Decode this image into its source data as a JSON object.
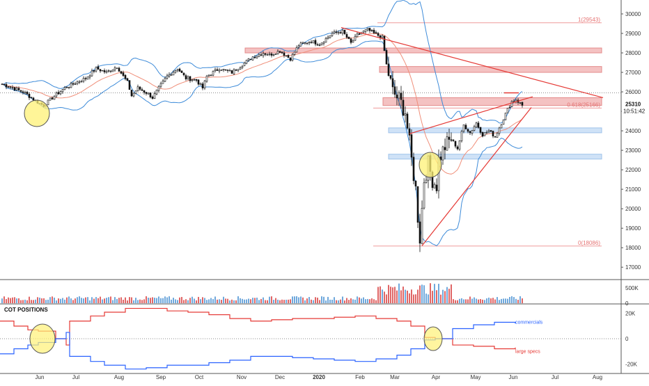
{
  "chart_data": {
    "type": "candlestick",
    "ohlc_reference": {
      "start_price": 26400,
      "end_price": 25310,
      "swing_high": 29543,
      "swing_low": 18086
    },
    "price_axis": {
      "ticks": [
        17000,
        18000,
        19000,
        20000,
        21000,
        22000,
        23000,
        24000,
        25000,
        26000,
        27000,
        28000,
        29000,
        30000
      ],
      "ylim": [
        16400,
        30500
      ],
      "current_price": "25310",
      "countdown": "10:51:42",
      "current_price_value": 25310
    },
    "time_axis": {
      "labels": [
        "Jun",
        "Jul",
        "Aug",
        "Sep",
        "Oct",
        "Nov",
        "Dec",
        "2020",
        "Feb",
        "Mar",
        "Apr",
        "May",
        "Jun",
        "Jul",
        "Aug"
      ]
    },
    "fibonacci": {
      "levels": [
        {
          "label": "1(29543)",
          "value": 29543
        },
        {
          "label": "0.618(25166)",
          "value": 25166
        },
        {
          "label": "0(18086)",
          "value": 18086
        }
      ]
    },
    "zones": [
      {
        "kind": "resistance",
        "low": 28000,
        "high": 28250
      },
      {
        "kind": "resistance",
        "low": 27000,
        "high": 27300
      },
      {
        "kind": "resistance",
        "low": 25300,
        "high": 25700
      },
      {
        "kind": "support",
        "low": 23900,
        "high": 24150
      },
      {
        "kind": "support",
        "low": 22550,
        "high": 22800
      }
    ],
    "volume_axis": {
      "ticks": [
        {
          "label": "500K",
          "value": 500000
        },
        {
          "label": "0",
          "value": 0
        }
      ],
      "ylim": [
        0,
        750000
      ]
    },
    "cot": {
      "title": "COT POSITIONS",
      "axis_ticks": [
        {
          "label": "20K",
          "value": 20000
        },
        {
          "label": "0",
          "value": 0
        },
        {
          "label": "-20K",
          "value": -20000
        }
      ],
      "ylim": [
        -27000,
        27000
      ],
      "series": [
        {
          "name": "commercials",
          "color": "#2962ff"
        },
        {
          "name": "large specs",
          "color": "#e53935"
        }
      ]
    },
    "colors": {
      "up": "#26a69a",
      "down": "#ef5350",
      "candle": "#111111",
      "bollinger": "#3d8bd9",
      "ma": "#f08f7a",
      "zone_red": "#f4c2c2",
      "zone_blue": "#cfe2f7",
      "trend": "#e53935",
      "highlight": "#fff176"
    }
  }
}
